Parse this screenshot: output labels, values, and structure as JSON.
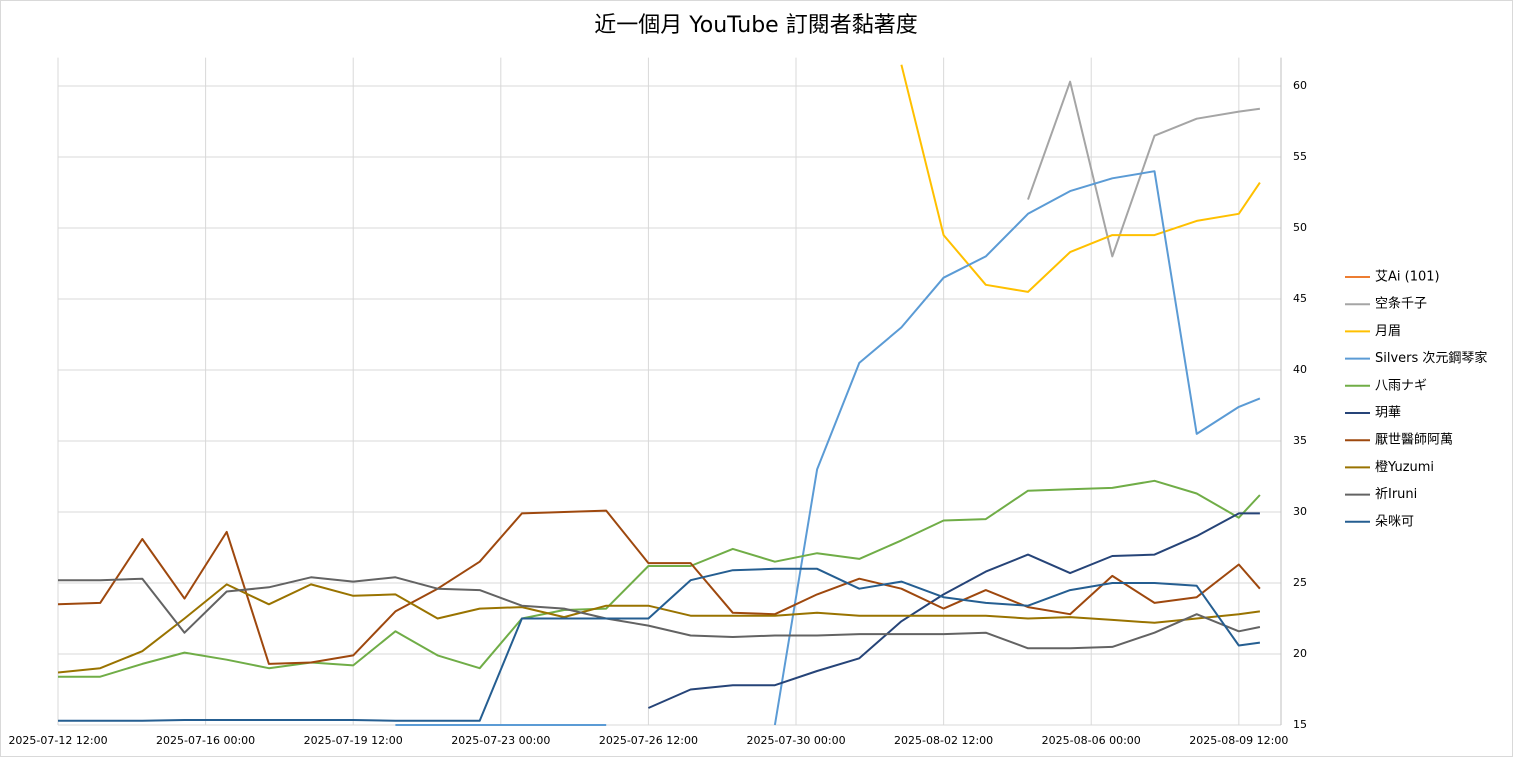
{
  "chart_data": {
    "type": "line",
    "title": "近一個月 YouTube 訂閱者黏著度",
    "x": [
      "2025-07-12 12:00",
      "2025-07-13 12:00",
      "2025-07-14 12:00",
      "2025-07-15 12:00",
      "2025-07-16 12:00",
      "2025-07-17 12:00",
      "2025-07-18 12:00",
      "2025-07-19 12:00",
      "2025-07-20 12:00",
      "2025-07-21 12:00",
      "2025-07-22 12:00",
      "2025-07-23 12:00",
      "2025-07-24 12:00",
      "2025-07-25 12:00",
      "2025-07-26 12:00",
      "2025-07-27 12:00",
      "2025-07-28 12:00",
      "2025-07-29 12:00",
      "2025-07-30 12:00",
      "2025-07-31 12:00",
      "2025-08-01 12:00",
      "2025-08-02 12:00",
      "2025-08-03 12:00",
      "2025-08-04 12:00",
      "2025-08-05 12:00",
      "2025-08-06 12:00",
      "2025-08-07 12:00",
      "2025-08-08 12:00",
      "2025-08-09 12:00",
      "2025-08-10 00:00"
    ],
    "xlim": [
      "2025-07-12 12:00",
      "2025-08-10 12:00"
    ],
    "xticks": [
      "2025-07-12 12:00",
      "2025-07-16 00:00",
      "2025-07-19 12:00",
      "2025-07-23 00:00",
      "2025-07-26 12:00",
      "2025-07-30 00:00",
      "2025-08-02 12:00",
      "2025-08-06 00:00",
      "2025-08-09 12:00"
    ],
    "ylim": [
      15,
      62
    ],
    "yticks": [
      15,
      20,
      25,
      30,
      35,
      40,
      45,
      50,
      55,
      60
    ],
    "grid": true,
    "legend": "right",
    "series": [
      {
        "name": "艾Ai (101)",
        "color": "#ed7d31",
        "values": [
          null,
          null,
          null,
          null,
          null,
          null,
          null,
          null,
          null,
          null,
          null,
          null,
          null,
          null,
          null,
          null,
          null,
          null,
          null,
          null,
          null,
          null,
          null,
          null,
          null,
          null,
          null,
          null,
          null,
          null
        ]
      },
      {
        "name": "空条千子",
        "color": "#a5a5a5",
        "values": [
          null,
          null,
          null,
          null,
          null,
          null,
          null,
          null,
          null,
          null,
          null,
          null,
          null,
          null,
          null,
          null,
          null,
          null,
          null,
          null,
          null,
          null,
          null,
          52,
          60.3,
          48,
          56.5,
          57.7,
          58.2,
          58.4
        ]
      },
      {
        "name": "月眉",
        "color": "#ffc000",
        "values": [
          null,
          null,
          null,
          null,
          null,
          null,
          null,
          null,
          null,
          null,
          null,
          null,
          null,
          null,
          null,
          null,
          null,
          null,
          null,
          null,
          61.5,
          49.5,
          46,
          45.5,
          48.3,
          49.5,
          49.5,
          50.5,
          51,
          53.2
        ]
      },
      {
        "name": "Silvers 次元鋼琴家",
        "color": "#5b9bd5",
        "values": [
          null,
          null,
          null,
          null,
          null,
          null,
          null,
          null,
          15,
          15,
          15,
          15,
          15,
          15,
          null,
          null,
          null,
          15,
          33,
          40.5,
          43,
          46.5,
          48,
          51,
          52.6,
          53.5,
          54,
          35.5,
          37.4,
          38
        ]
      },
      {
        "name": "八雨ナギ",
        "color": "#70ad47",
        "values": [
          18.4,
          18.4,
          19.3,
          20.1,
          19.6,
          19,
          19.4,
          19.2,
          21.6,
          19.9,
          19,
          22.5,
          23.1,
          23.2,
          26.2,
          26.2,
          27.4,
          26.5,
          27.1,
          26.7,
          28,
          29.4,
          29.5,
          31.5,
          31.6,
          31.7,
          32.2,
          31.3,
          29.6,
          31.2
        ]
      },
      {
        "name": "玥華",
        "color": "#264478",
        "values": [
          null,
          null,
          null,
          null,
          null,
          null,
          null,
          null,
          null,
          null,
          null,
          null,
          null,
          null,
          16.2,
          17.5,
          17.8,
          17.8,
          18.8,
          19.7,
          22.3,
          24.2,
          25.8,
          27,
          25.7,
          26.9,
          27,
          28.3,
          29.9,
          29.9
        ]
      },
      {
        "name": "厭世醫師阿萬",
        "color": "#9e480e",
        "values": [
          23.5,
          23.6,
          28.1,
          23.9,
          28.6,
          19.3,
          19.4,
          19.9,
          23,
          24.6,
          26.5,
          29.9,
          30,
          30.1,
          26.4,
          26.4,
          22.9,
          22.8,
          24.2,
          25.3,
          24.6,
          23.2,
          24.5,
          23.3,
          22.8,
          25.5,
          23.6,
          24,
          26.3,
          24.6
        ]
      },
      {
        "name": "橙Yuzumi",
        "color": "#997300",
        "values": [
          18.7,
          19,
          20.2,
          22.5,
          24.9,
          23.5,
          24.9,
          24.1,
          24.2,
          22.5,
          23.2,
          23.3,
          22.6,
          23.4,
          23.4,
          22.7,
          22.7,
          22.7,
          22.9,
          22.7,
          22.7,
          22.7,
          22.7,
          22.5,
          22.6,
          22.4,
          22.2,
          22.5,
          22.8,
          23
        ]
      },
      {
        "name": "祈Iruni",
        "color": "#636363",
        "values": [
          25.2,
          25.2,
          25.3,
          21.5,
          24.4,
          24.7,
          25.4,
          25.1,
          25.4,
          24.6,
          24.5,
          23.4,
          23.2,
          22.5,
          22,
          21.3,
          21.2,
          21.3,
          21.3,
          21.4,
          21.4,
          21.4,
          21.5,
          20.4,
          20.4,
          20.5,
          21.5,
          22.8,
          21.6,
          21.9
        ]
      },
      {
        "name": "朵咪可",
        "color": "#255e91",
        "values": [
          15.3,
          15.3,
          15.3,
          15.35,
          15.35,
          15.35,
          15.35,
          15.35,
          15.3,
          15.3,
          15.3,
          22.5,
          22.5,
          22.5,
          22.5,
          25.2,
          25.9,
          26,
          26,
          24.6,
          25.1,
          24,
          23.6,
          23.4,
          24.5,
          25,
          25,
          24.8,
          20.6,
          20.8
        ]
      }
    ]
  }
}
